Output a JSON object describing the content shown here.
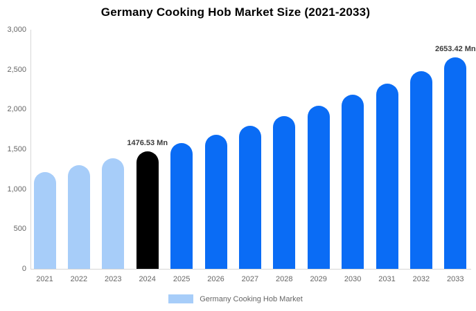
{
  "chart_data": {
    "type": "bar",
    "title": "Germany Cooking Hob Market Size (2021-2033)",
    "categories": [
      "2021",
      "2022",
      "2023",
      "2024",
      "2025",
      "2026",
      "2027",
      "2028",
      "2029",
      "2030",
      "2031",
      "2032",
      "2033"
    ],
    "series": [
      {
        "name": "Germany Cooking Hob Market",
        "values": [
          1215,
          1297,
          1384,
          1476.53,
          1576,
          1682,
          1795,
          1915,
          2044,
          2181,
          2328,
          2484,
          2653.42
        ]
      }
    ],
    "unit": "Mn",
    "ylim": [
      0,
      3000
    ],
    "y_tick_labels": [
      "3,000",
      "2,500",
      "2,000",
      "1,500",
      "1,000",
      "500",
      "0"
    ],
    "grid": false,
    "legend_position": "bottom",
    "data_labels": [
      {
        "category": "2024",
        "text": "1476.53 Mn"
      },
      {
        "category": "2033",
        "text": "2653.42 Mn"
      }
    ],
    "bar_colors": [
      "#a7cdf9",
      "#a7cdf9",
      "#a7cdf9",
      "#000000",
      "#0a6cf5",
      "#0a6cf5",
      "#0a6cf5",
      "#0a6cf5",
      "#0a6cf5",
      "#0a6cf5",
      "#0a6cf5",
      "#0a6cf5",
      "#0a6cf5"
    ]
  },
  "colors": {
    "historical_bar": "#a7cdf9",
    "base_year_bar": "#000000",
    "forecast_bar": "#0a6cf5",
    "axis_line": "#d6d6d6",
    "tick_text": "#666666",
    "data_label_text": "#3b3b3b"
  },
  "legend": {
    "label": "Germany Cooking Hob Market",
    "swatch_color": "#a7cdf9"
  }
}
